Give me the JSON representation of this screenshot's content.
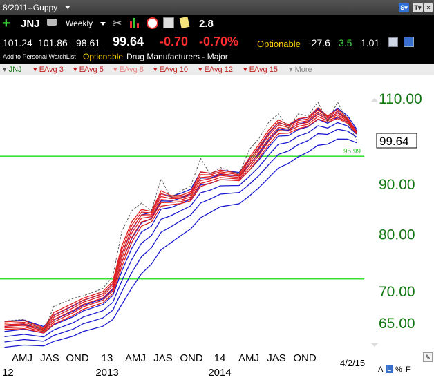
{
  "window": {
    "title": "8/2011--Guppy"
  },
  "quote": {
    "symbol": "JNJ",
    "period": "Weekly",
    "indicator_value": "2.8",
    "open": "101.24",
    "high": "101.86",
    "low": "98.61",
    "last": "99.64",
    "change": "-0.70",
    "change_pct": "-0.70%",
    "optionable": "Optionable",
    "stat1": "-27.6",
    "stat2": "3.5",
    "stat3": "1.01",
    "add_watchlist": "Add to Personal WatchList",
    "optionable2": "Optionable",
    "industry": "Drug Manufacturers - Major"
  },
  "indicator_bar": {
    "symbol": "JNJ",
    "items": [
      "EAvg 3",
      "EAvg 5",
      "EAvg 8",
      "EAvg 10",
      "EAvg 12",
      "EAvg 15"
    ],
    "more": "More"
  },
  "bottom": {
    "date": "4/2/15",
    "controls": [
      "A",
      "L",
      "%",
      "F"
    ]
  },
  "colors": {
    "short_ema": "#e02020",
    "long_ema": "#1a1ad0",
    "price": "#555555",
    "hline": "#38e038",
    "axis_text": "#117711"
  },
  "chart_data": {
    "type": "line",
    "title": "",
    "x_tick_labels": [
      "AMJ",
      "JAS",
      "OND",
      "13",
      "AMJ",
      "JAS",
      "OND",
      "14",
      "AMJ",
      "JAS",
      "OND"
    ],
    "x_year_labels": [
      "12",
      "2013",
      "2014"
    ],
    "y_tick_labels": [
      "110.00",
      "90.00",
      "80.00",
      "70.00",
      "65.00"
    ],
    "y_scale": "log",
    "ylim": [
      62,
      114
    ],
    "last_price": "99.64",
    "horizontal_lines": [
      {
        "value": 95.99,
        "label": "95.99"
      },
      {
        "value": 72
      }
    ],
    "x": [
      "2012-03",
      "2012-05",
      "2012-07",
      "2012-08",
      "2012-10",
      "2012-11",
      "2013-01",
      "2013-02",
      "2013-03",
      "2013-04",
      "2013-05",
      "2013-06",
      "2013-07",
      "2013-08",
      "2013-09",
      "2013-10",
      "2013-11",
      "2013-12",
      "2014-01",
      "2014-03",
      "2014-04",
      "2014-05",
      "2014-06",
      "2014-07",
      "2014-08",
      "2014-09",
      "2014-10",
      "2014-11",
      "2014-12",
      "2015-01",
      "2015-02",
      "2015-03"
    ],
    "series": [
      {
        "name": "Price",
        "values": [
          65.2,
          65.5,
          63.6,
          67.5,
          68.8,
          69.2,
          70.4,
          72.5,
          80.5,
          84.5,
          86,
          84.5,
          91,
          87,
          88.5,
          89.5,
          95.5,
          92,
          93.5,
          92,
          97.5,
          100,
          104,
          106,
          102.5,
          106,
          105.5,
          109,
          104,
          109,
          104,
          99.64
        ]
      },
      {
        "name": "EAvg 3",
        "values": [
          65.1,
          65.3,
          64.1,
          66.8,
          68.2,
          68.9,
          70,
          71.8,
          78.5,
          82.8,
          85,
          84.3,
          89,
          87.4,
          87.6,
          88.4,
          93,
          92.2,
          93,
          92.1,
          96,
          99,
          102.5,
          104.8,
          103.2,
          105,
          105.2,
          107.8,
          105.3,
          107.3,
          104.8,
          101.3
        ]
      }
    ]
  }
}
